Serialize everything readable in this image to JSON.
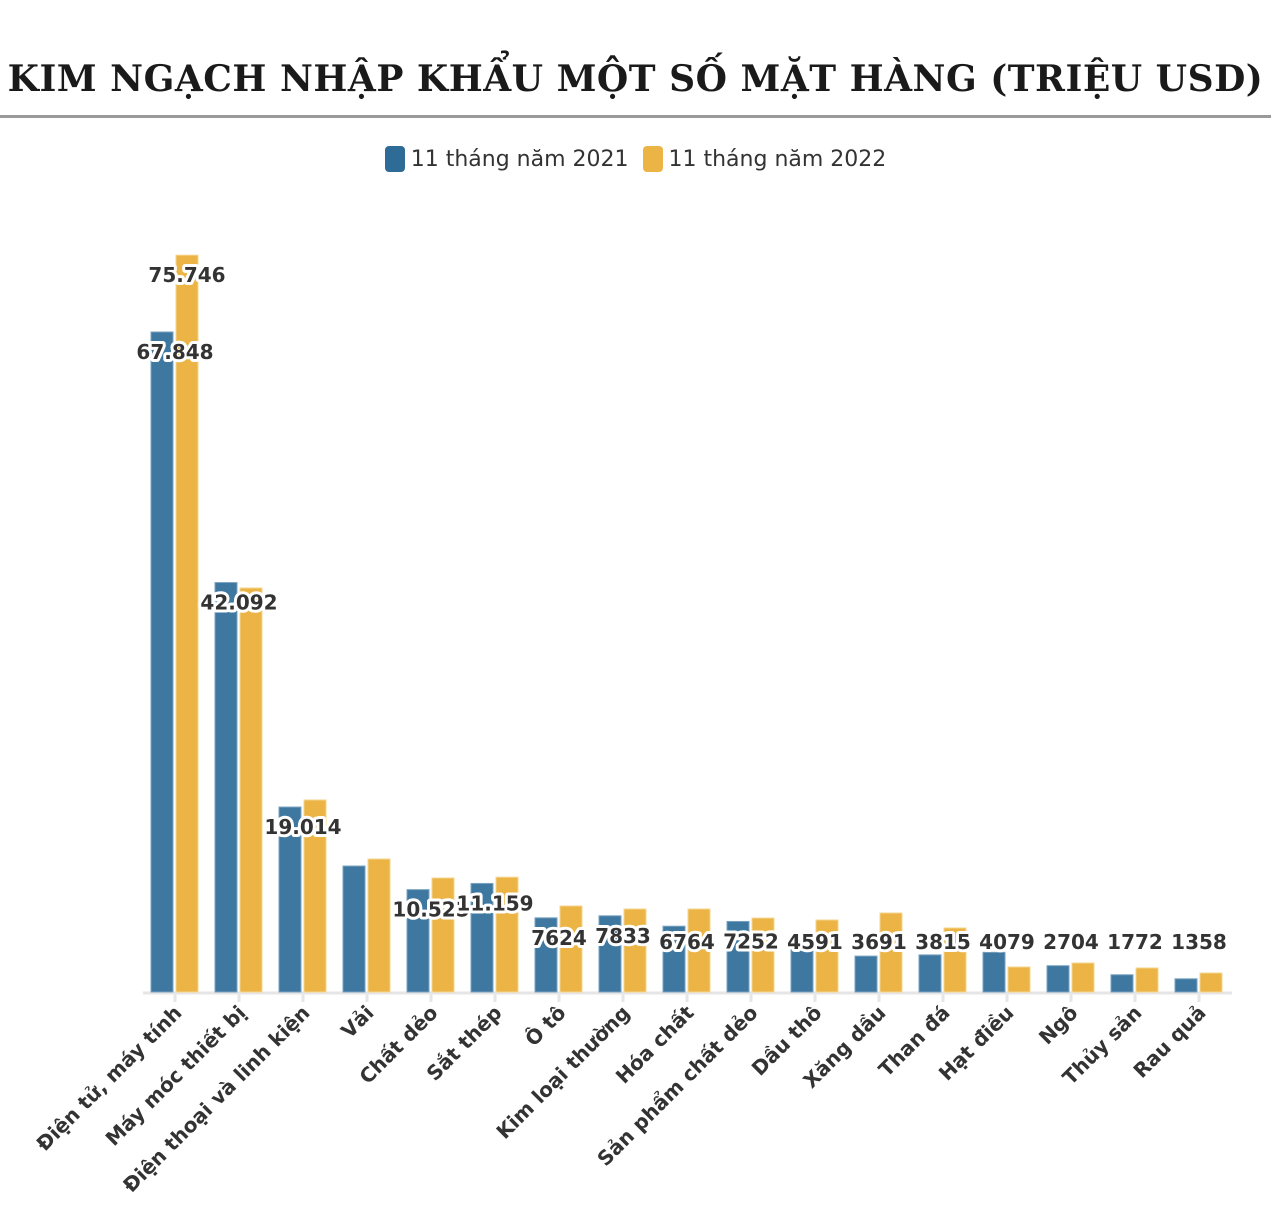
{
  "chart_data": {
    "type": "bar",
    "title": "KIM NGẠCH NHẬP KHẨU MỘT SỐ MẶT HÀNG (TRIỆU USD)",
    "xlabel": "",
    "ylabel": "Triệu USD",
    "ylim": [
      0,
      78000
    ],
    "grid": false,
    "legend_position": "top-center",
    "categories": [
      "Điện tử, máy tính",
      "Máy móc thiết bị",
      "Điện thoại và linh kiện",
      "Vải",
      "Chất dẻo",
      "Sắt thép",
      "Ô tô",
      "Kim loại thường",
      "Hóa chất",
      "Sản phẩm chất dẻo",
      "Dầu thô",
      "Xăng dầu",
      "Than đá",
      "Hạt điều",
      "Ngô",
      "Thủy sản",
      "Rau quả"
    ],
    "series": [
      {
        "name": "11 tháng năm 2021",
        "color": "#3e77a0",
        "values": [
          67848,
          42092,
          19014,
          12950,
          10525,
          11159,
          7624,
          7833,
          6764,
          7252,
          4591,
          3691,
          3815,
          4079,
          2704,
          1772,
          1358
        ]
      },
      {
        "name": "11 tháng năm 2022",
        "color": "#ebb444",
        "values": [
          75746,
          41530,
          19740,
          13670,
          11720,
          11800,
          8840,
          8530,
          8530,
          7600,
          7400,
          8120,
          6580,
          2570,
          2980,
          2470,
          1950
        ]
      }
    ],
    "data_labels": [
      "67.848",
      "42.092",
      "19.014",
      "",
      "10.525",
      "11.159",
      "7624",
      "7833",
      "6764",
      "7252",
      "4591",
      "3691",
      "3815",
      "4079",
      "2704",
      "1772",
      "1358"
    ],
    "extra_label": "75.746"
  }
}
